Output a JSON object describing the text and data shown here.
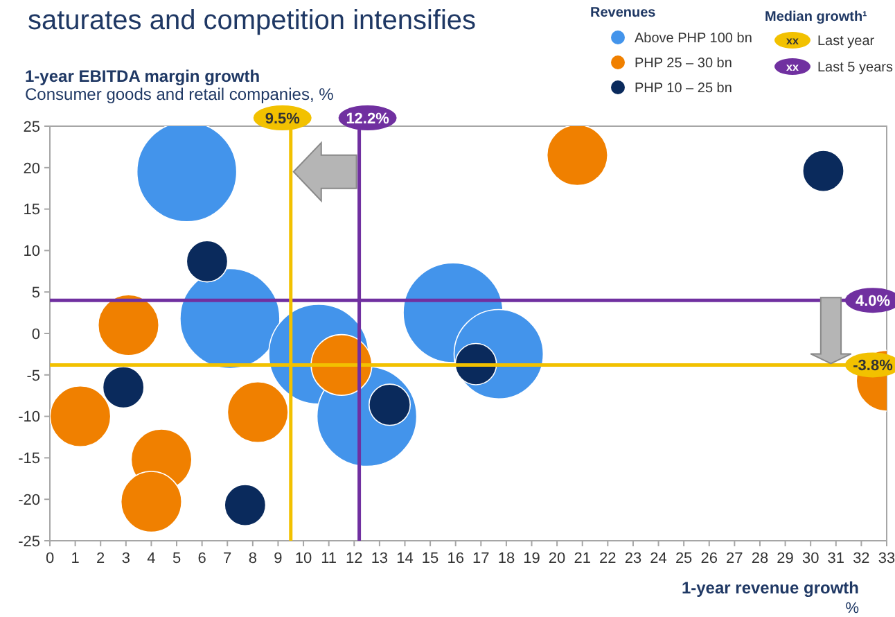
{
  "chart_data": {
    "type": "bubble",
    "title": "saturates and competition intensifies",
    "subtitle": "Consumer goods and retail companies, %",
    "ylabel": "1-year EBITDA margin growth",
    "xlabel": "1-year revenue growth",
    "legend_title": "Revenues",
    "legend": "top right",
    "grid": false,
    "xlim": [
      0,
      33
    ],
    "xticks": [
      0,
      1,
      2,
      3,
      4,
      5,
      6,
      7,
      8,
      9,
      10,
      11,
      12,
      13,
      14,
      15,
      16,
      17,
      18,
      19,
      20,
      21,
      22,
      23,
      24,
      25,
      26,
      27,
      28,
      29,
      30,
      31,
      32,
      33
    ],
    "ylim": [
      -25,
      25
    ],
    "yticks": [
      -25,
      -20,
      -15,
      -10,
      -5,
      0,
      5,
      10,
      15,
      20,
      25
    ],
    "series": [
      {
        "name": "Above PHP 100 bn",
        "color": "#4394eb",
        "x": [
          5.4,
          7.1,
          10.6,
          12.5,
          15.9,
          17.7
        ],
        "values": [
          19.5,
          1.8,
          -2.5,
          -10,
          2.5,
          -2.5
        ],
        "sizes": [
          1,
          1,
          1,
          1,
          1,
          0.8
        ]
      },
      {
        "name": "PHP 25 – 30 bn",
        "color": "#f08000",
        "x": [
          3.1,
          1.2,
          4.4,
          4,
          8.2,
          11.5,
          20.8,
          33
        ],
        "values": [
          1,
          -10,
          -15.2,
          -20.3,
          -9.5,
          -3.8,
          21.5,
          -5.7
        ],
        "sizes": [
          0.37,
          0.37,
          0.37,
          0.37,
          0.37,
          0.37,
          0.37,
          0.37
        ]
      },
      {
        "name": "PHP 10 – 25 bn",
        "color": "#0a2a5c",
        "x": [
          6.2,
          2.9,
          7.7,
          13.4,
          16.8,
          30.5
        ],
        "values": [
          8.7,
          -6.5,
          -20.7,
          -8.6,
          -3.7,
          19.6
        ],
        "sizes": [
          0.17,
          0.17,
          0.17,
          0.17,
          0.17,
          0.17
        ]
      }
    ],
    "ref_lines": [
      {
        "axis": "y",
        "value": 4.0,
        "label": "4.0%",
        "color": "#7030a0"
      },
      {
        "axis": "y",
        "value": -3.8,
        "label": "-3.8%",
        "color": "#f2c100"
      },
      {
        "axis": "x",
        "value": 9.5,
        "label": "9.5%",
        "color": "#f2c100"
      },
      {
        "axis": "x",
        "value": 12.2,
        "label": "12.2%",
        "color": "#7030a0"
      }
    ],
    "annotations": [
      "Median growth¹",
      "xx",
      "Last year",
      "xx",
      "Last 5 years",
      "%"
    ]
  }
}
